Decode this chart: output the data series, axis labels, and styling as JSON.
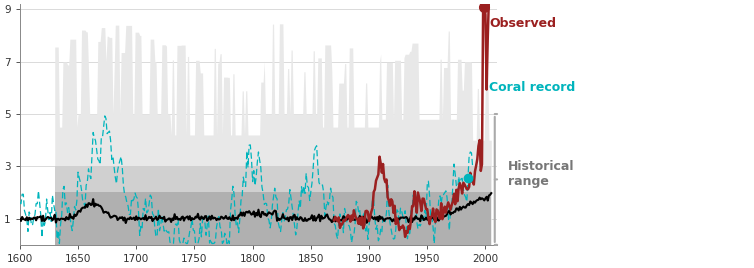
{
  "x_min": 1600,
  "x_max": 2010,
  "y_min": 0,
  "y_max": 9.2,
  "y_ticks": [
    1,
    3,
    5,
    7,
    9
  ],
  "x_ticks": [
    1600,
    1650,
    1700,
    1750,
    1800,
    1850,
    1900,
    1950,
    2000
  ],
  "bg_color": "#ffffff",
  "band_dark_color": "#b0b0b0",
  "band_mid_color": "#d0d0d0",
  "band_light_color": "#e8e8e8",
  "observed_color": "#9b2020",
  "coral_color": "#00b4bc",
  "model_color": "#000000",
  "label_observed": "Observed",
  "label_coral": "Coral record",
  "label_historical": "Historical\nrange",
  "figsize": [
    7.54,
    2.68
  ],
  "dpi": 100
}
